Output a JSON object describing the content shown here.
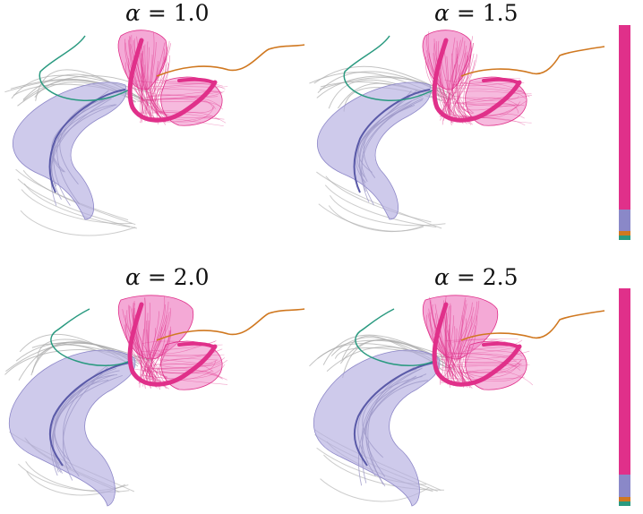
{
  "panels": [
    {
      "symbol": "α",
      "value": "= 1.0"
    },
    {
      "symbol": "α",
      "value": "= 1.5"
    },
    {
      "symbol": "α",
      "value": "= 2.0"
    },
    {
      "symbol": "α",
      "value": "= 2.5"
    }
  ],
  "colors": {
    "pink": "#e0308a",
    "pink_fill": "#f08cc8",
    "lavender": "#b3aee0",
    "blue_line": "#5a5aa8",
    "teal": "#2a9a80",
    "orange": "#d07820",
    "gray": "#aaaaaa"
  },
  "colorbars": [
    {
      "segments": [
        {
          "color": "#e0308a",
          "fraction": 0.84
        },
        {
          "color": "#8a88c8",
          "fraction": 0.1
        },
        {
          "color": "#d07820",
          "fraction": 0.02
        },
        {
          "color": "#2a9a80",
          "fraction": 0.02
        },
        {
          "color": "#ffffff",
          "fraction": 0.02
        }
      ]
    },
    {
      "segments": [
        {
          "color": "#e0308a",
          "fraction": 0.84
        },
        {
          "color": "#8a88c8",
          "fraction": 0.1
        },
        {
          "color": "#d07820",
          "fraction": 0.02
        },
        {
          "color": "#2a9a80",
          "fraction": 0.02
        },
        {
          "color": "#ffffff",
          "fraction": 0.02
        }
      ]
    }
  ]
}
